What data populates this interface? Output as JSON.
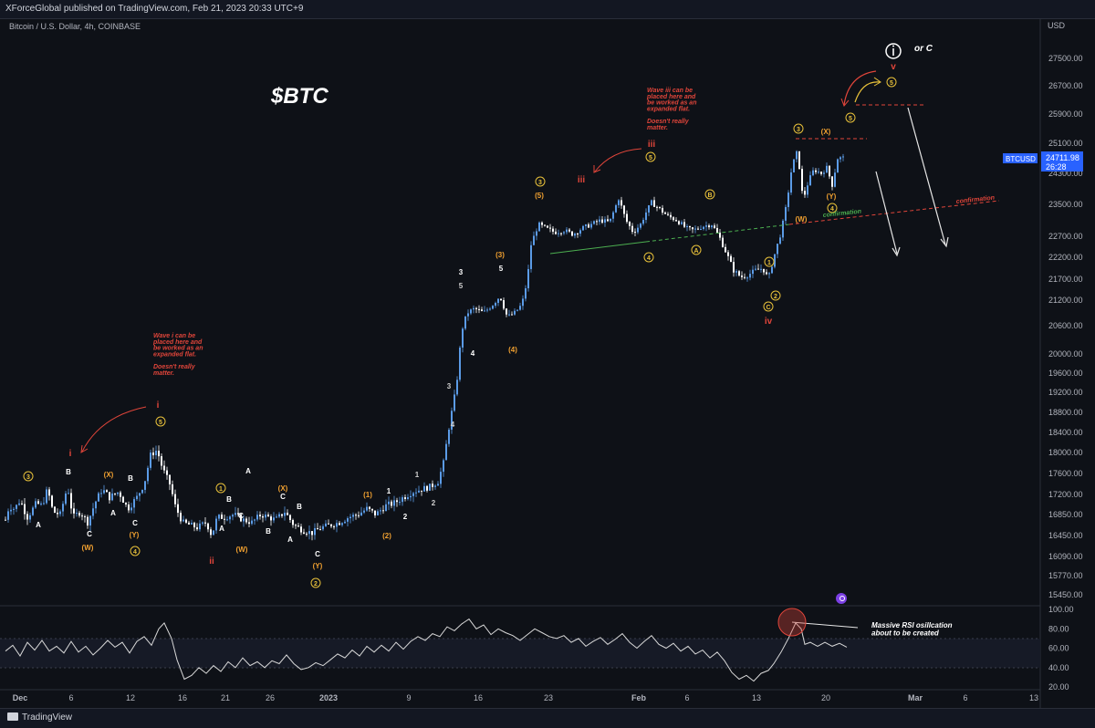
{
  "header": {
    "published": "XForceGlobal published on TradingView.com, Feb 21, 2023 20:33 UTC+9"
  },
  "symbol_line": "Bitcoin / U.S. Dollar, 4h, COINBASE",
  "currency": "USD",
  "footer": {
    "brand": "TradingView"
  },
  "price_tag": {
    "symbol": "BTCUSD",
    "price": "24711.98",
    "countdown": "26:28"
  },
  "colors": {
    "background": "#0e1117",
    "candle": "#4a88d6",
    "text": "#d1d4dc",
    "orange": "#f0a030",
    "red": "#e0453a",
    "yellow": "#e8c13a",
    "green": "#4caf50",
    "rsi": "#d8d8d8",
    "tag": "#2962ff"
  },
  "annotations": {
    "title": "$BTC",
    "wave_i_note": [
      "Wave i can be",
      "placed here and",
      "be worked as an",
      "expanded flat.",
      "",
      "Doesn't really",
      "matter."
    ],
    "wave_iii_note": [
      "Wave iii can be",
      "placed here and",
      "be worked as an",
      "expanded flat.",
      "",
      "Doesn't really",
      "matter."
    ],
    "or_c": "or C",
    "confirmation": "confirmation",
    "rsi_note": [
      "Massive RSI osillcation",
      "about to be created"
    ]
  },
  "chart_data": {
    "type": "candlestick",
    "panes": [
      {
        "name": "price",
        "ylim": [
          15450,
          27500
        ]
      },
      {
        "name": "rsi",
        "ylim": [
          20,
          100
        ]
      }
    ],
    "x_ticks": [
      "Dec",
      "6",
      "12",
      "16",
      "21",
      "26",
      "2023",
      "9",
      "16",
      "23",
      "Feb",
      "6",
      "13",
      "20",
      "Mar",
      "6",
      "13"
    ],
    "y_ticks": [
      27500,
      26700,
      25900,
      25100,
      24300,
      23500,
      22700,
      22200,
      21700,
      21200,
      20600,
      20000,
      19600,
      19200,
      18800,
      18400,
      18000,
      17600,
      17200,
      16850,
      16450,
      16090,
      15770,
      15450
    ],
    "rsi_ticks": [
      100,
      80,
      60,
      40,
      20
    ],
    "price_path": [
      [
        0,
        16300
      ],
      [
        6,
        16750
      ],
      [
        10,
        17000
      ],
      [
        16,
        16950
      ],
      [
        22,
        17100
      ],
      [
        30,
        16800
      ],
      [
        40,
        17050
      ],
      [
        46,
        17000
      ],
      [
        52,
        17300
      ],
      [
        58,
        16900
      ],
      [
        66,
        16850
      ],
      [
        74,
        17350
      ],
      [
        80,
        16800
      ],
      [
        88,
        16900
      ],
      [
        96,
        16700
      ],
      [
        104,
        17050
      ],
      [
        112,
        17300
      ],
      [
        120,
        17150
      ],
      [
        130,
        17250
      ],
      [
        140,
        16950
      ],
      [
        150,
        17150
      ],
      [
        158,
        17400
      ],
      [
        165,
        17950
      ],
      [
        172,
        18050
      ],
      [
        178,
        17700
      ],
      [
        186,
        17400
      ],
      [
        192,
        17000
      ],
      [
        200,
        16700
      ],
      [
        208,
        16650
      ],
      [
        216,
        16600
      ],
      [
        226,
        16700
      ],
      [
        232,
        16450
      ],
      [
        238,
        16800
      ],
      [
        246,
        16800
      ],
      [
        256,
        16850
      ],
      [
        266,
        16750
      ],
      [
        276,
        16700
      ],
      [
        286,
        16850
      ],
      [
        294,
        16800
      ],
      [
        302,
        16750
      ],
      [
        312,
        16900
      ],
      [
        322,
        16650
      ],
      [
        332,
        16550
      ],
      [
        342,
        16500
      ],
      [
        352,
        16600
      ],
      [
        362,
        16650
      ],
      [
        372,
        16700
      ],
      [
        382,
        16800
      ],
      [
        392,
        16850
      ],
      [
        402,
        16950
      ],
      [
        412,
        16850
      ],
      [
        422,
        17000
      ],
      [
        432,
        17050
      ],
      [
        442,
        17150
      ],
      [
        452,
        17250
      ],
      [
        462,
        17300
      ],
      [
        472,
        17350
      ],
      [
        480,
        17450
      ],
      [
        486,
        17800
      ],
      [
        492,
        18500
      ],
      [
        500,
        19300
      ],
      [
        506,
        20500
      ],
      [
        512,
        20900
      ],
      [
        520,
        21000
      ],
      [
        530,
        20900
      ],
      [
        540,
        21100
      ],
      [
        548,
        21300
      ],
      [
        556,
        20800
      ],
      [
        564,
        20900
      ],
      [
        572,
        21100
      ],
      [
        578,
        21700
      ],
      [
        582,
        22500
      ],
      [
        590,
        23000
      ],
      [
        598,
        22900
      ],
      [
        608,
        22800
      ],
      [
        618,
        22850
      ],
      [
        628,
        22750
      ],
      [
        638,
        22900
      ],
      [
        648,
        23000
      ],
      [
        658,
        23100
      ],
      [
        668,
        23050
      ],
      [
        678,
        23650
      ],
      [
        686,
        23100
      ],
      [
        694,
        22800
      ],
      [
        702,
        23000
      ],
      [
        708,
        23300
      ],
      [
        714,
        23550
      ],
      [
        722,
        23400
      ],
      [
        732,
        23200
      ],
      [
        742,
        23100
      ],
      [
        752,
        22900
      ],
      [
        760,
        22850
      ],
      [
        770,
        22950
      ],
      [
        780,
        23000
      ],
      [
        788,
        22700
      ],
      [
        796,
        22300
      ],
      [
        804,
        21900
      ],
      [
        812,
        21750
      ],
      [
        820,
        21800
      ],
      [
        828,
        21900
      ],
      [
        836,
        21950
      ],
      [
        842,
        21700
      ],
      [
        848,
        22200
      ],
      [
        856,
        22800
      ],
      [
        862,
        23500
      ],
      [
        868,
        24500
      ],
      [
        874,
        24900
      ],
      [
        880,
        23600
      ],
      [
        886,
        24100
      ],
      [
        892,
        24400
      ],
      [
        900,
        24300
      ],
      [
        906,
        24450
      ],
      [
        912,
        24000
      ],
      [
        918,
        24700
      ],
      [
        924,
        24712
      ]
    ],
    "rsi_path": [
      [
        0,
        57
      ],
      [
        8,
        63
      ],
      [
        16,
        52
      ],
      [
        24,
        66
      ],
      [
        32,
        58
      ],
      [
        40,
        68
      ],
      [
        48,
        57
      ],
      [
        56,
        62
      ],
      [
        64,
        55
      ],
      [
        72,
        67
      ],
      [
        80,
        56
      ],
      [
        88,
        62
      ],
      [
        96,
        53
      ],
      [
        104,
        60
      ],
      [
        112,
        68
      ],
      [
        120,
        61
      ],
      [
        128,
        66
      ],
      [
        136,
        55
      ],
      [
        144,
        67
      ],
      [
        152,
        72
      ],
      [
        160,
        63
      ],
      [
        168,
        80
      ],
      [
        174,
        86
      ],
      [
        182,
        70
      ],
      [
        188,
        48
      ],
      [
        196,
        28
      ],
      [
        204,
        32
      ],
      [
        212,
        40
      ],
      [
        220,
        34
      ],
      [
        228,
        42
      ],
      [
        236,
        36
      ],
      [
        244,
        46
      ],
      [
        252,
        40
      ],
      [
        260,
        50
      ],
      [
        268,
        42
      ],
      [
        276,
        46
      ],
      [
        284,
        40
      ],
      [
        292,
        47
      ],
      [
        300,
        44
      ],
      [
        308,
        53
      ],
      [
        316,
        44
      ],
      [
        324,
        38
      ],
      [
        332,
        40
      ],
      [
        340,
        45
      ],
      [
        348,
        42
      ],
      [
        356,
        48
      ],
      [
        364,
        54
      ],
      [
        372,
        50
      ],
      [
        380,
        58
      ],
      [
        388,
        52
      ],
      [
        396,
        62
      ],
      [
        404,
        56
      ],
      [
        412,
        63
      ],
      [
        420,
        57
      ],
      [
        428,
        66
      ],
      [
        436,
        59
      ],
      [
        444,
        67
      ],
      [
        452,
        72
      ],
      [
        460,
        68
      ],
      [
        468,
        75
      ],
      [
        476,
        72
      ],
      [
        484,
        82
      ],
      [
        492,
        78
      ],
      [
        500,
        85
      ],
      [
        508,
        90
      ],
      [
        516,
        80
      ],
      [
        524,
        84
      ],
      [
        532,
        74
      ],
      [
        540,
        80
      ],
      [
        548,
        76
      ],
      [
        556,
        73
      ],
      [
        564,
        68
      ],
      [
        572,
        74
      ],
      [
        580,
        80
      ],
      [
        588,
        76
      ],
      [
        596,
        72
      ],
      [
        604,
        70
      ],
      [
        612,
        73
      ],
      [
        620,
        66
      ],
      [
        628,
        70
      ],
      [
        636,
        62
      ],
      [
        644,
        67
      ],
      [
        652,
        71
      ],
      [
        660,
        64
      ],
      [
        668,
        69
      ],
      [
        676,
        75
      ],
      [
        684,
        66
      ],
      [
        692,
        60
      ],
      [
        700,
        67
      ],
      [
        708,
        73
      ],
      [
        716,
        64
      ],
      [
        724,
        60
      ],
      [
        732,
        65
      ],
      [
        740,
        57
      ],
      [
        748,
        62
      ],
      [
        756,
        54
      ],
      [
        764,
        58
      ],
      [
        772,
        50
      ],
      [
        780,
        56
      ],
      [
        788,
        47
      ],
      [
        796,
        35
      ],
      [
        804,
        28
      ],
      [
        812,
        32
      ],
      [
        820,
        26
      ],
      [
        828,
        34
      ],
      [
        836,
        37
      ],
      [
        842,
        44
      ],
      [
        850,
        56
      ],
      [
        858,
        70
      ],
      [
        866,
        86
      ],
      [
        872,
        80
      ],
      [
        876,
        64
      ],
      [
        882,
        66
      ],
      [
        890,
        62
      ],
      [
        898,
        66
      ],
      [
        906,
        62
      ],
      [
        914,
        65
      ],
      [
        922,
        61
      ]
    ]
  }
}
